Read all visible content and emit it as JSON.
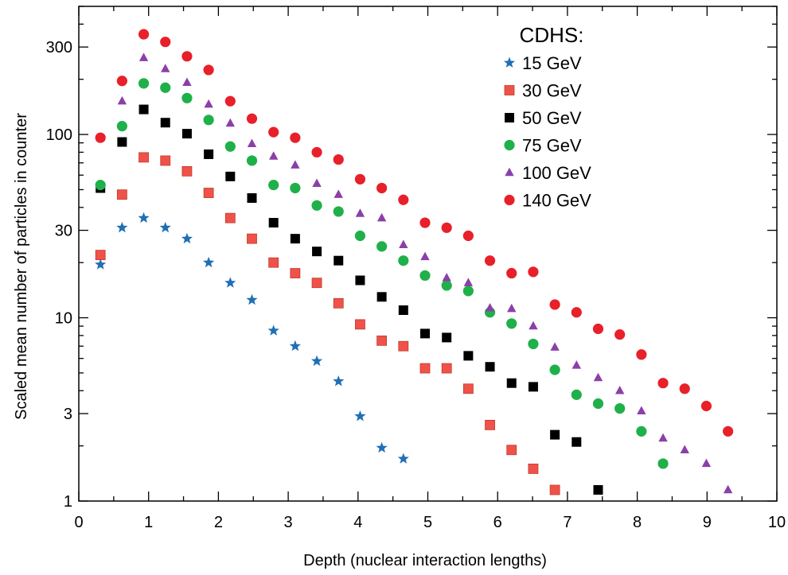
{
  "chart_data": {
    "type": "scatter",
    "title": "",
    "xlabel": "Depth (nuclear interaction lengths)",
    "ylabel": "Scaled mean number of particles in counter",
    "xlim": [
      0,
      10
    ],
    "ylim": [
      1,
      500
    ],
    "yscale": "log",
    "grid": false,
    "x_ticks": [
      0,
      1,
      2,
      3,
      4,
      5,
      6,
      7,
      8,
      9,
      10
    ],
    "x_tick_labels": [
      "0",
      "1",
      "2",
      "3",
      "4",
      "5",
      "6",
      "7",
      "8",
      "9",
      "10"
    ],
    "y_ticks": [
      1,
      3,
      10,
      30,
      100,
      300
    ],
    "y_tick_labels": [
      "1",
      "3",
      "10",
      "30",
      "100",
      "300"
    ],
    "legend": {
      "title": "CDHS:",
      "placement": "top-right"
    },
    "series": [
      {
        "name": "15 GeV",
        "marker": "star",
        "color": "#1f6fb5",
        "x": [
          0.31,
          0.62,
          0.93,
          1.24,
          1.55,
          1.86,
          2.17,
          2.48,
          2.79,
          3.1,
          3.41,
          3.72,
          4.03,
          4.34,
          4.65
        ],
        "y": [
          19.5,
          31,
          35,
          31,
          27,
          20,
          15.5,
          12.5,
          8.5,
          7,
          5.8,
          4.5,
          2.9,
          1.95,
          1.7
        ]
      },
      {
        "name": "30 GeV",
        "marker": "square",
        "color": "#f0524a",
        "x": [
          0.31,
          0.62,
          0.93,
          1.24,
          1.55,
          1.86,
          2.17,
          2.48,
          2.79,
          3.1,
          3.41,
          3.72,
          4.03,
          4.34,
          4.65,
          4.96,
          5.27,
          5.58,
          5.89,
          6.2,
          6.51,
          6.82
        ],
        "y": [
          22,
          47,
          75,
          72,
          63,
          48,
          35,
          27,
          20,
          17.5,
          15.5,
          12,
          9.2,
          7.5,
          7,
          5.3,
          5.3,
          4.1,
          2.6,
          1.9,
          1.5,
          1.15
        ]
      },
      {
        "name": "50 GeV",
        "marker": "square",
        "color": "#000000",
        "x": [
          0.31,
          0.62,
          0.93,
          1.24,
          1.55,
          1.86,
          2.17,
          2.48,
          2.79,
          3.1,
          3.41,
          3.72,
          4.03,
          4.34,
          4.65,
          4.96,
          5.27,
          5.58,
          5.89,
          6.2,
          6.51,
          6.82,
          7.13,
          7.44
        ],
        "y": [
          51,
          91,
          137,
          116,
          101,
          78,
          59,
          45,
          33,
          27,
          23,
          20.5,
          16,
          13,
          11,
          8.2,
          7.8,
          6.2,
          5.4,
          4.4,
          4.2,
          2.3,
          2.1,
          1.15
        ]
      },
      {
        "name": "75 GeV",
        "marker": "circle",
        "color": "#1fb04a",
        "x": [
          0.31,
          0.62,
          0.93,
          1.24,
          1.55,
          1.86,
          2.17,
          2.48,
          2.79,
          3.1,
          3.41,
          3.72,
          4.03,
          4.34,
          4.65,
          4.96,
          5.27,
          5.58,
          5.89,
          6.2,
          6.51,
          6.82,
          7.13,
          7.44,
          7.75,
          8.06,
          8.37
        ],
        "y": [
          53,
          111,
          190,
          180,
          158,
          120,
          86,
          72,
          53,
          51,
          41,
          38,
          28,
          24.5,
          20.5,
          17,
          15,
          14,
          10.7,
          9.3,
          7.2,
          5.2,
          3.8,
          3.4,
          3.2,
          2.4,
          1.6
        ]
      },
      {
        "name": "100 GeV",
        "marker": "triangle",
        "color": "#8b3fa8",
        "x": [
          0.31,
          0.62,
          0.93,
          1.24,
          1.55,
          1.86,
          2.17,
          2.48,
          2.79,
          3.1,
          3.41,
          3.72,
          4.03,
          4.34,
          4.65,
          4.96,
          5.27,
          5.58,
          5.89,
          6.2,
          6.51,
          6.82,
          7.13,
          7.44,
          7.75,
          8.06,
          8.37,
          8.68,
          8.99,
          9.3
        ],
        "y": [
          96,
          152,
          262,
          228,
          192,
          146,
          115,
          89,
          76,
          68,
          54,
          47,
          37,
          35,
          25,
          21.5,
          16.5,
          15.5,
          11.3,
          11.2,
          9,
          6.9,
          5.5,
          4.7,
          4,
          3.1,
          2.2,
          1.9,
          1.6,
          1.15
        ]
      },
      {
        "name": "140 GeV",
        "marker": "circle",
        "color": "#e8202a",
        "x": [
          0.31,
          0.62,
          0.93,
          1.24,
          1.55,
          1.86,
          2.17,
          2.48,
          2.79,
          3.1,
          3.41,
          3.72,
          4.03,
          4.34,
          4.65,
          4.96,
          5.27,
          5.58,
          5.89,
          6.2,
          6.51,
          6.82,
          7.13,
          7.44,
          7.75,
          8.06,
          8.37,
          8.68,
          8.99,
          9.3
        ],
        "y": [
          96,
          196,
          352,
          320,
          267,
          225,
          152,
          122,
          103,
          96,
          80,
          73,
          57,
          51,
          44,
          33,
          31,
          28,
          20.5,
          17.5,
          17.8,
          11.8,
          10.7,
          8.7,
          8.1,
          6.3,
          4.4,
          4.1,
          3.3,
          2.4
        ]
      }
    ]
  }
}
